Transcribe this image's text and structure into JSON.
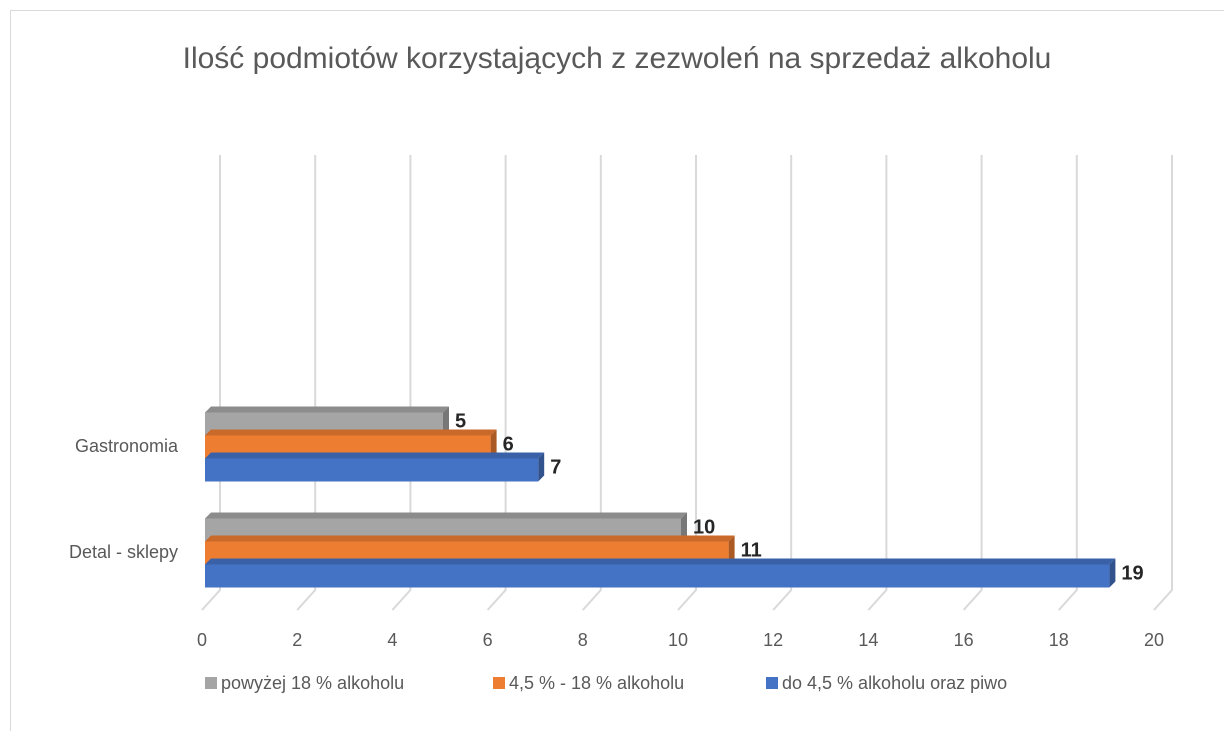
{
  "chart_data": {
    "type": "bar3d_horizontal",
    "title": "Ilość podmiotów korzystających z zezwoleń na sprzedaż alkoholu",
    "categories": [
      "Detal - sklepy",
      "Gastronomia"
    ],
    "series": [
      {
        "name": "powyżej 18 % alkoholu",
        "color": "#a5a5a5",
        "values": [
          10,
          5
        ]
      },
      {
        "name": "4,5 % - 18 % alkoholu",
        "color": "#ed7d31",
        "values": [
          11,
          6
        ]
      },
      {
        "name": "do 4,5 % alkoholu oraz piwo",
        "color": "#4472c4",
        "values": [
          19,
          7
        ]
      }
    ],
    "xlim": [
      0,
      20
    ],
    "xticks": [
      0,
      2,
      4,
      6,
      8,
      10,
      12,
      14,
      16,
      18,
      20
    ],
    "grid": true,
    "legend": "bottom"
  }
}
